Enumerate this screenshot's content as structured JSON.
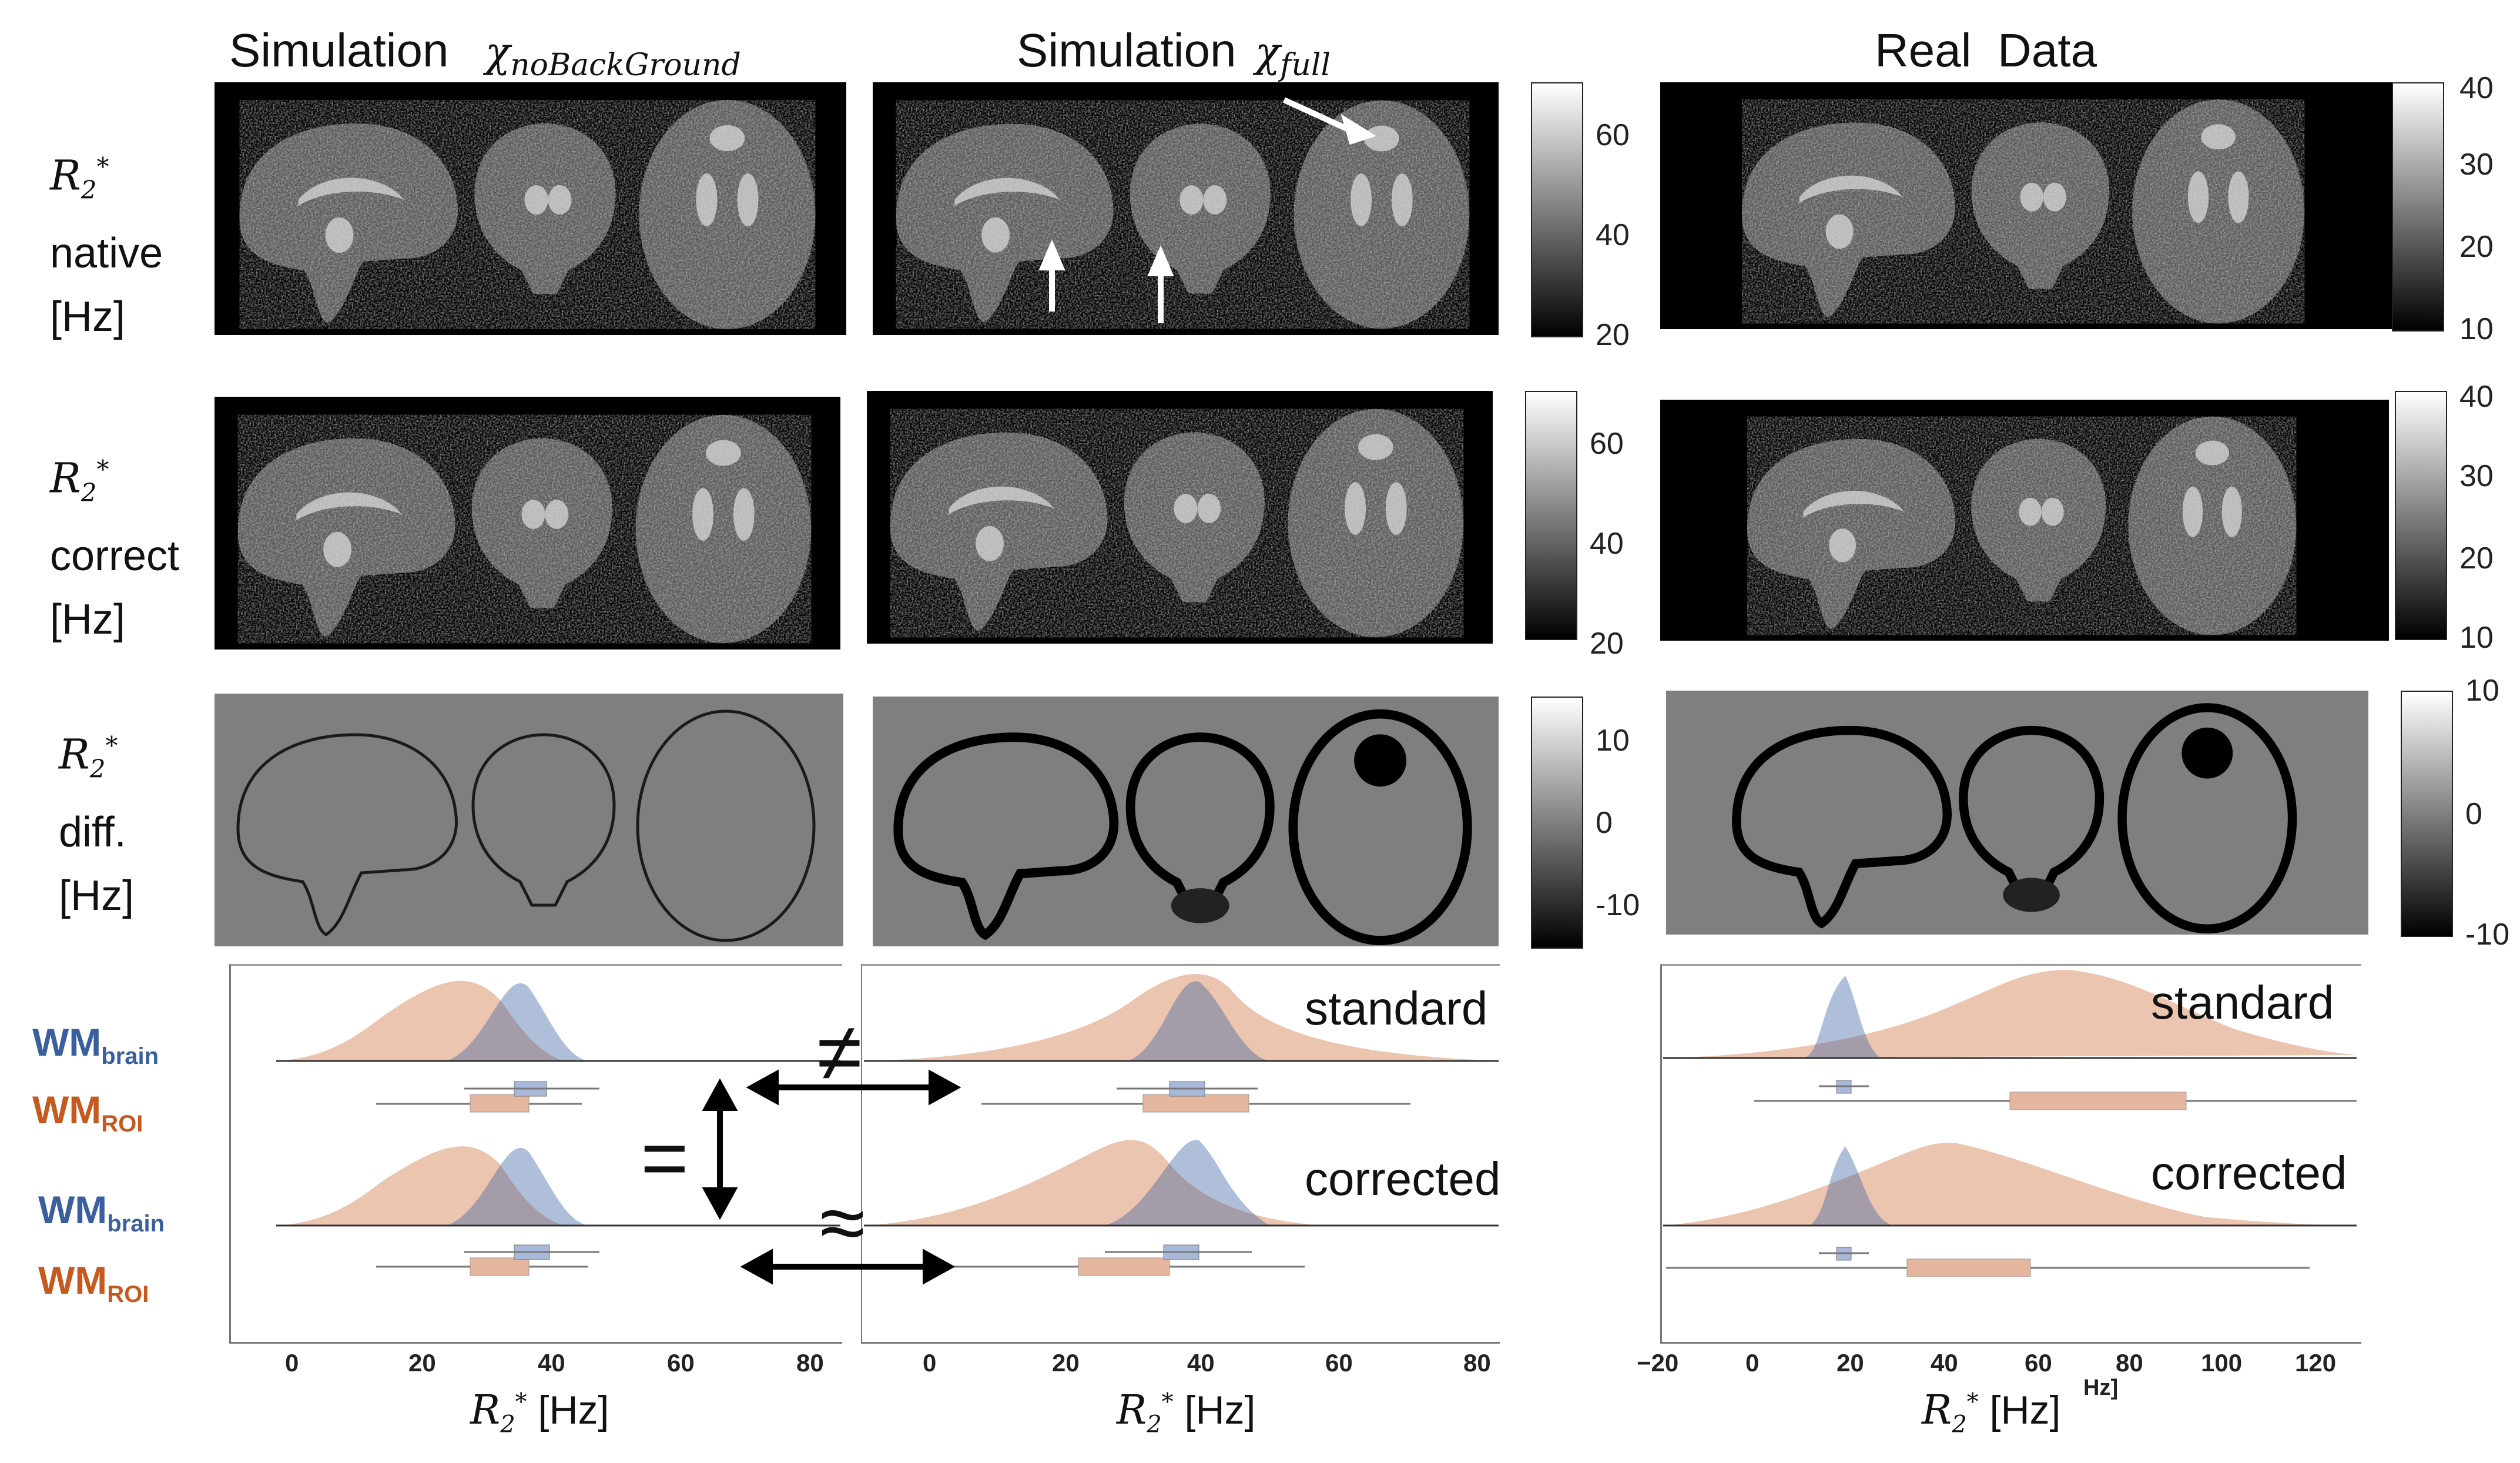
{
  "columns": [
    {
      "prefix": "Simulation",
      "symbol": "χnoBackGround"
    },
    {
      "prefix": "Simulation",
      "symbol": "χfull"
    },
    {
      "prefix": "Real  Data",
      "symbol": ""
    }
  ],
  "rows": [
    {
      "symbol": "R2*",
      "lines": [
        "native",
        "[Hz]"
      ]
    },
    {
      "symbol": "R2*",
      "lines": [
        "correct",
        "[Hz]"
      ]
    },
    {
      "symbol": "R2*",
      "lines": [
        "diff.",
        "[Hz]"
      ]
    }
  ],
  "colorbars": {
    "sim_map": [
      "60",
      "40",
      "20"
    ],
    "real_map": [
      "40",
      "30",
      "20",
      "10"
    ],
    "diff": [
      "10",
      "0",
      "-10"
    ]
  },
  "dist": {
    "series": [
      {
        "name": "WM",
        "sub": "brain",
        "color": "#3a5f9f"
      },
      {
        "name": "WM",
        "sub": "ROI",
        "color": "#c65a1e"
      }
    ],
    "labels": {
      "standard": "standard",
      "corrected": "corrected"
    },
    "symbols": {
      "neq": "≠",
      "approx": "≈",
      "eq": "="
    },
    "axis_sim_label": "R2* [Hz]",
    "axis_real_label": "R2* [Hz]",
    "axis_extra": "Hz]",
    "x_ticks_sim": [
      "0",
      "20",
      "40",
      "60",
      "80"
    ],
    "x_ticks_real": [
      "−20",
      "0",
      "20",
      "40",
      "60",
      "80",
      "100",
      "120"
    ]
  }
}
